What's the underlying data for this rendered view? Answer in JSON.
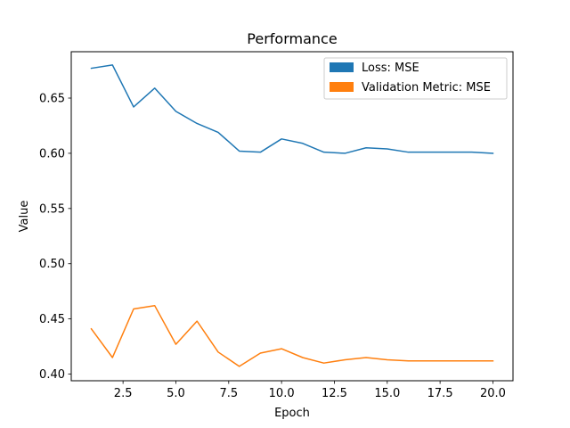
{
  "chart_data": {
    "type": "line",
    "title": "Performance",
    "xlabel": "Epoch",
    "ylabel": "Value",
    "xlim": [
      0.05,
      20.95
    ],
    "ylim": [
      0.394,
      0.692
    ],
    "x_ticks": [
      2.5,
      5.0,
      7.5,
      10.0,
      12.5,
      15.0,
      17.5,
      20.0
    ],
    "x_tick_labels": [
      "2.5",
      "5.0",
      "7.5",
      "10.0",
      "12.5",
      "15.0",
      "17.5",
      "20.0"
    ],
    "y_ticks": [
      0.4,
      0.45,
      0.5,
      0.55,
      0.6,
      0.65
    ],
    "y_tick_labels": [
      "0.40",
      "0.45",
      "0.50",
      "0.55",
      "0.60",
      "0.65"
    ],
    "grid": false,
    "legend_position": "top-right",
    "x": [
      1,
      2,
      3,
      4,
      5,
      6,
      7,
      8,
      9,
      10,
      11,
      12,
      13,
      14,
      15,
      16,
      17,
      18,
      19,
      20
    ],
    "series": [
      {
        "name": "Loss: MSE",
        "color": "#1f77b4",
        "values": [
          0.677,
          0.68,
          0.642,
          0.659,
          0.638,
          0.627,
          0.619,
          0.602,
          0.601,
          0.613,
          0.609,
          0.601,
          0.6,
          0.605,
          0.604,
          0.601,
          0.601,
          0.601,
          0.601,
          0.6
        ]
      },
      {
        "name": "Validation Metric: MSE",
        "color": "#ff7f0e",
        "values": [
          0.441,
          0.415,
          0.459,
          0.462,
          0.427,
          0.448,
          0.42,
          0.407,
          0.419,
          0.423,
          0.415,
          0.41,
          0.413,
          0.415,
          0.413,
          0.412,
          0.412,
          0.412,
          0.412,
          0.412
        ]
      }
    ]
  }
}
